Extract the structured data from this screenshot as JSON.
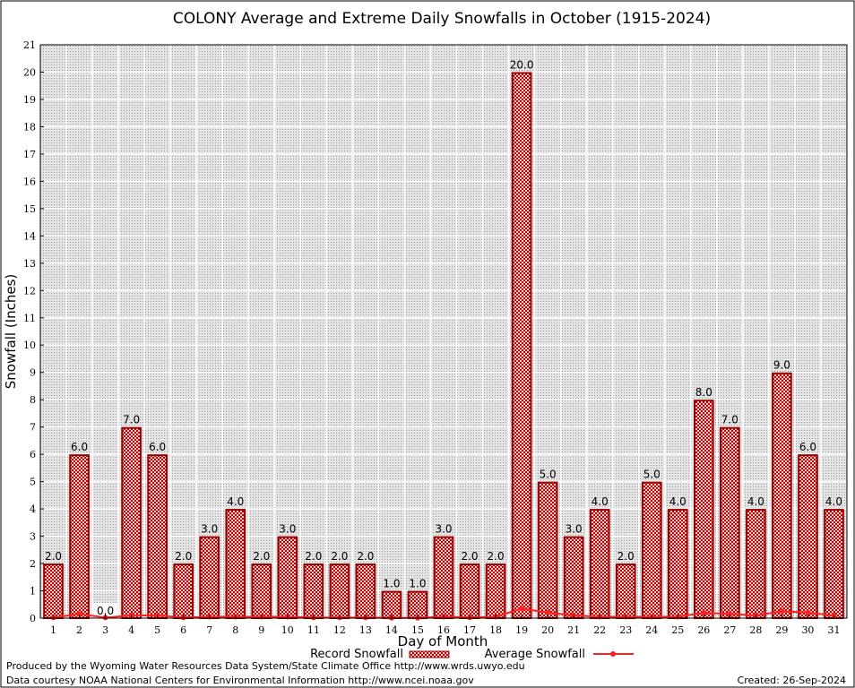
{
  "chart_data": {
    "type": "bar",
    "title": "COLONY Average and Extreme Daily Snowfalls in October (1915-2024)",
    "xlabel": "Day of Month",
    "ylabel": "Snowfall (Inches)",
    "ylim": [
      0,
      21
    ],
    "yticks": [
      0,
      1,
      2,
      3,
      4,
      5,
      6,
      7,
      8,
      9,
      10,
      11,
      12,
      13,
      14,
      15,
      16,
      17,
      18,
      19,
      20,
      21
    ],
    "grid": true,
    "legend_position": "bottom",
    "categories": [
      "1",
      "2",
      "3",
      "4",
      "5",
      "6",
      "7",
      "8",
      "9",
      "10",
      "11",
      "12",
      "13",
      "14",
      "15",
      "16",
      "17",
      "18",
      "19",
      "20",
      "21",
      "22",
      "23",
      "24",
      "25",
      "26",
      "27",
      "28",
      "29",
      "30",
      "31"
    ],
    "series": [
      {
        "name": "Record Snowfall",
        "kind": "bar",
        "color": "#cc0000",
        "values": [
          2.0,
          6.0,
          0.0,
          7.0,
          6.0,
          2.0,
          3.0,
          4.0,
          2.0,
          3.0,
          2.0,
          2.0,
          2.0,
          1.0,
          1.0,
          3.0,
          2.0,
          2.0,
          20.0,
          5.0,
          3.0,
          4.0,
          2.0,
          5.0,
          4.0,
          8.0,
          7.0,
          4.0,
          9.0,
          6.0,
          4.0
        ],
        "labels": [
          "2.0",
          "6.0",
          "0.0",
          "7.0",
          "6.0",
          "2.0",
          "3.0",
          "4.0",
          "2.0",
          "3.0",
          "2.0",
          "2.0",
          "2.0",
          "1.0",
          "1.0",
          "3.0",
          "2.0",
          "2.0",
          "20.0",
          "5.0",
          "3.0",
          "4.0",
          "2.0",
          "5.0",
          "4.0",
          "8.0",
          "7.0",
          "4.0",
          "9.0",
          "6.0",
          "4.0"
        ]
      },
      {
        "name": "Average Snowfall",
        "kind": "line",
        "color": "#ff2020",
        "values": [
          0.02,
          0.15,
          0.02,
          0.1,
          0.1,
          0.02,
          0.05,
          0.05,
          0.05,
          0.05,
          0.02,
          0.02,
          0.02,
          0.01,
          0.01,
          0.05,
          0.02,
          0.05,
          0.35,
          0.2,
          0.1,
          0.05,
          0.05,
          0.05,
          0.05,
          0.2,
          0.15,
          0.1,
          0.25,
          0.2,
          0.1
        ]
      }
    ]
  },
  "footer": {
    "produced_by": "Produced by the Wyoming Water Resources Data System/State Climate Office http://www.wrds.uwyo.edu",
    "data_courtesy": "Data courtesy NOAA National Centers for Environmental Information http://www.ncei.noaa.gov",
    "created": "Created: 26-Sep-2024"
  }
}
